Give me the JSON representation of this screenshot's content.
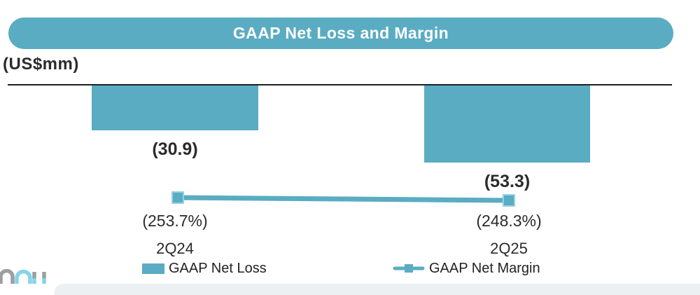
{
  "header": {
    "title": "GAAP Net Loss and Margin"
  },
  "unit_label": "(US$mm)",
  "chart_data": {
    "type": "bar",
    "subtype": "bar-and-line combo",
    "title": "GAAP Net Loss and Margin",
    "unit": "US$mm",
    "categories": [
      "2Q24",
      "2Q25"
    ],
    "series": [
      {
        "name": "GAAP Net Loss",
        "type": "bar",
        "axis": "primary (US$mm)",
        "values": [
          -30.9,
          -53.3
        ],
        "data_labels": [
          "(30.9)",
          "(53.3)"
        ],
        "color": "#5aacc2"
      },
      {
        "name": "GAAP Net Margin",
        "type": "line",
        "axis": "secondary (%)",
        "values": [
          -253.7,
          -248.3
        ],
        "data_labels": [
          "(253.7%)",
          "(248.3%)"
        ],
        "color": "#5aacc2",
        "marker": "square"
      }
    ],
    "ylim": [
      -60,
      0
    ],
    "grid": false,
    "legend_position": "bottom",
    "legend": [
      "GAAP Net Loss",
      "GAAP Net Margin"
    ]
  },
  "colors": {
    "accent_teal": "#5aacc2",
    "marker_border": "#96d2e2",
    "axis_line": "#1e1e1e",
    "text_dark": "#2b2b2b",
    "footer_band": "#edf0f3",
    "logo_gray": "#9c9ea0",
    "logo_blue": "#84d5ea"
  }
}
